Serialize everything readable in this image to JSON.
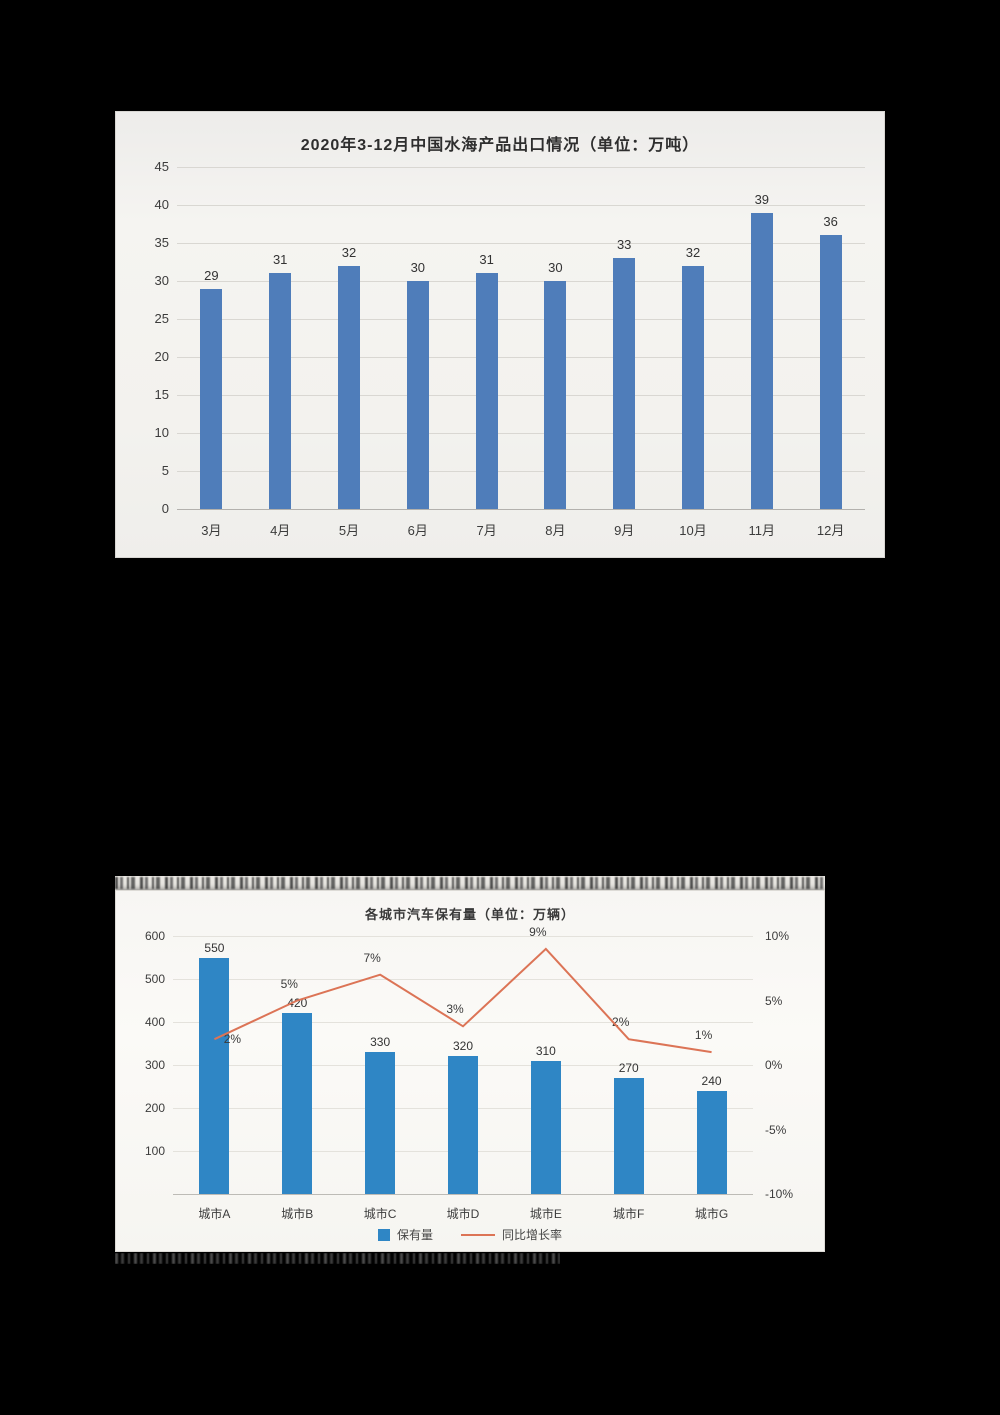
{
  "page": {
    "background": "#000000"
  },
  "chart_data": [
    {
      "type": "bar",
      "title": "2020年3-12月中国水海产品出口情况（单位：万吨）",
      "categories": [
        "3月",
        "4月",
        "5月",
        "6月",
        "7月",
        "8月",
        "9月",
        "10月",
        "11月",
        "12月"
      ],
      "values": [
        29,
        31,
        32,
        30,
        31,
        30,
        33,
        32,
        39,
        36
      ],
      "xlabel": "",
      "ylabel": "",
      "ylim": [
        0,
        45
      ],
      "yticks": [
        0,
        5,
        10,
        15,
        20,
        25,
        30,
        35,
        40,
        45
      ],
      "ytick_step": 5,
      "grid": true,
      "legend": "none",
      "data_labels": true,
      "bar_color": "#4f7dba",
      "panel_background": "#f3f2ee"
    },
    {
      "type": "bar+line",
      "title": "各城市汽车保有量（单位：万辆）",
      "categories": [
        "城市A",
        "城市B",
        "城市C",
        "城市D",
        "城市E",
        "城市F",
        "城市G"
      ],
      "series": [
        {
          "name": "保有量",
          "chart_type": "bar",
          "axis": "left",
          "values": [
            550,
            420,
            330,
            320,
            310,
            270,
            240
          ],
          "color": "#2f86c5"
        },
        {
          "name": "同比增长率",
          "chart_type": "line",
          "axis": "right",
          "values": [
            2,
            5,
            7,
            3,
            9,
            2,
            1
          ],
          "labels": [
            "2%",
            "5%",
            "7%",
            "3%",
            "9%",
            "2%",
            "1%"
          ],
          "color": "#dc7456"
        }
      ],
      "left_axis": {
        "lim": [
          0,
          600
        ],
        "ticks": [
          600,
          500,
          400,
          300,
          200,
          100
        ]
      },
      "right_axis": {
        "lim": [
          -10,
          10
        ],
        "ticks": [
          "10%",
          "5%",
          "0%",
          "-5%",
          "-10%"
        ]
      },
      "grid": true,
      "legend_position": "bottom",
      "data_labels": true,
      "panel_background": "#fbfaf7"
    }
  ]
}
